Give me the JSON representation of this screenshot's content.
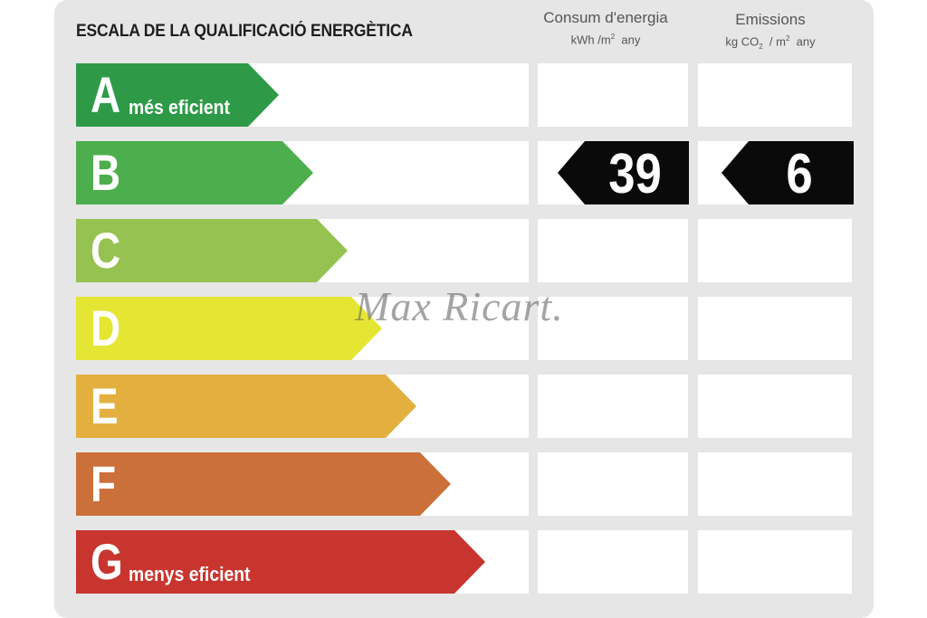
{
  "title": "ESCALA DE LA QUALIFICACIÓ ENERGÈTICA",
  "columns": {
    "consumption": {
      "label": "Consum d'energia",
      "unit_prefix": "kWh /m",
      "unit_exp": "2",
      "unit_suffix": "any"
    },
    "emissions": {
      "label": "Emissions",
      "unit_prefix": "kg CO",
      "unit_sub": "2",
      "unit_mid": "/ m",
      "unit_exp": "2",
      "unit_suffix": "any"
    }
  },
  "ratings": [
    {
      "letter": "A",
      "label": "més eficient",
      "color": "#2e9a48"
    },
    {
      "letter": "B",
      "label": "",
      "color": "#4cae4c"
    },
    {
      "letter": "C",
      "label": "",
      "color": "#95c250"
    },
    {
      "letter": "D",
      "label": "",
      "color": "#e4e633"
    },
    {
      "letter": "E",
      "label": "",
      "color": "#e3b040"
    },
    {
      "letter": "F",
      "label": "",
      "color": "#cb703a"
    },
    {
      "letter": "G",
      "label": "menys eficient",
      "color": "#c8352f"
    }
  ],
  "current_rating": "B",
  "consumption_value": "39",
  "emissions_value": "6",
  "watermark": "Max Ricart."
}
